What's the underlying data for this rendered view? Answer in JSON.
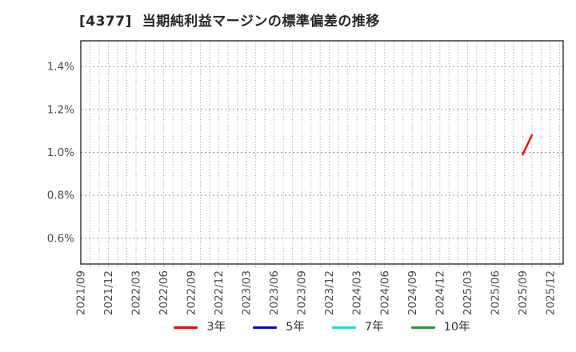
{
  "chart_data": {
    "type": "line",
    "title": "[4377]  当期純利益マージンの標準偏差の推移",
    "x_axis": {
      "tick_labels": [
        "2021/09",
        "2021/12",
        "2022/03",
        "2022/06",
        "2022/09",
        "2022/12",
        "2023/03",
        "2023/06",
        "2023/09",
        "2023/12",
        "2024/03",
        "2024/06",
        "2024/09",
        "2024/12",
        "2025/03",
        "2025/06",
        "2025/09",
        "2025/12"
      ],
      "start_month": "2021/09",
      "months_per_tick": 3,
      "total_months_span": 52.4,
      "minor_gridlines": "monthly"
    },
    "y_axis": {
      "tick_labels": [
        "0.6%",
        "0.8%",
        "1.0%",
        "1.2%",
        "1.4%"
      ],
      "tick_values": [
        0.6,
        0.8,
        1.0,
        1.2,
        1.4
      ],
      "unit": "%",
      "range": [
        0.48,
        1.52
      ]
    },
    "grid": {
      "show": true,
      "style": "dotted",
      "color": "#999999"
    },
    "legend_position": "bottom",
    "series": [
      {
        "name": "3年",
        "color": "#ff0000",
        "points": [
          {
            "x": "2025/09",
            "y": 0.99
          },
          {
            "x": "2025/10",
            "y": 1.08
          }
        ]
      },
      {
        "name": "5年",
        "color": "#0000ee",
        "points": []
      },
      {
        "name": "7年",
        "color": "#00e5ee",
        "points": []
      },
      {
        "name": "10年",
        "color": "#1f9d2f",
        "points": []
      }
    ]
  },
  "styles": {
    "background": "#ffffff",
    "title_color": "#262626",
    "tick_label_color": "#4a4a4a",
    "axis_border_color": "#1c1c1c",
    "legend_text_color": "#333333"
  }
}
